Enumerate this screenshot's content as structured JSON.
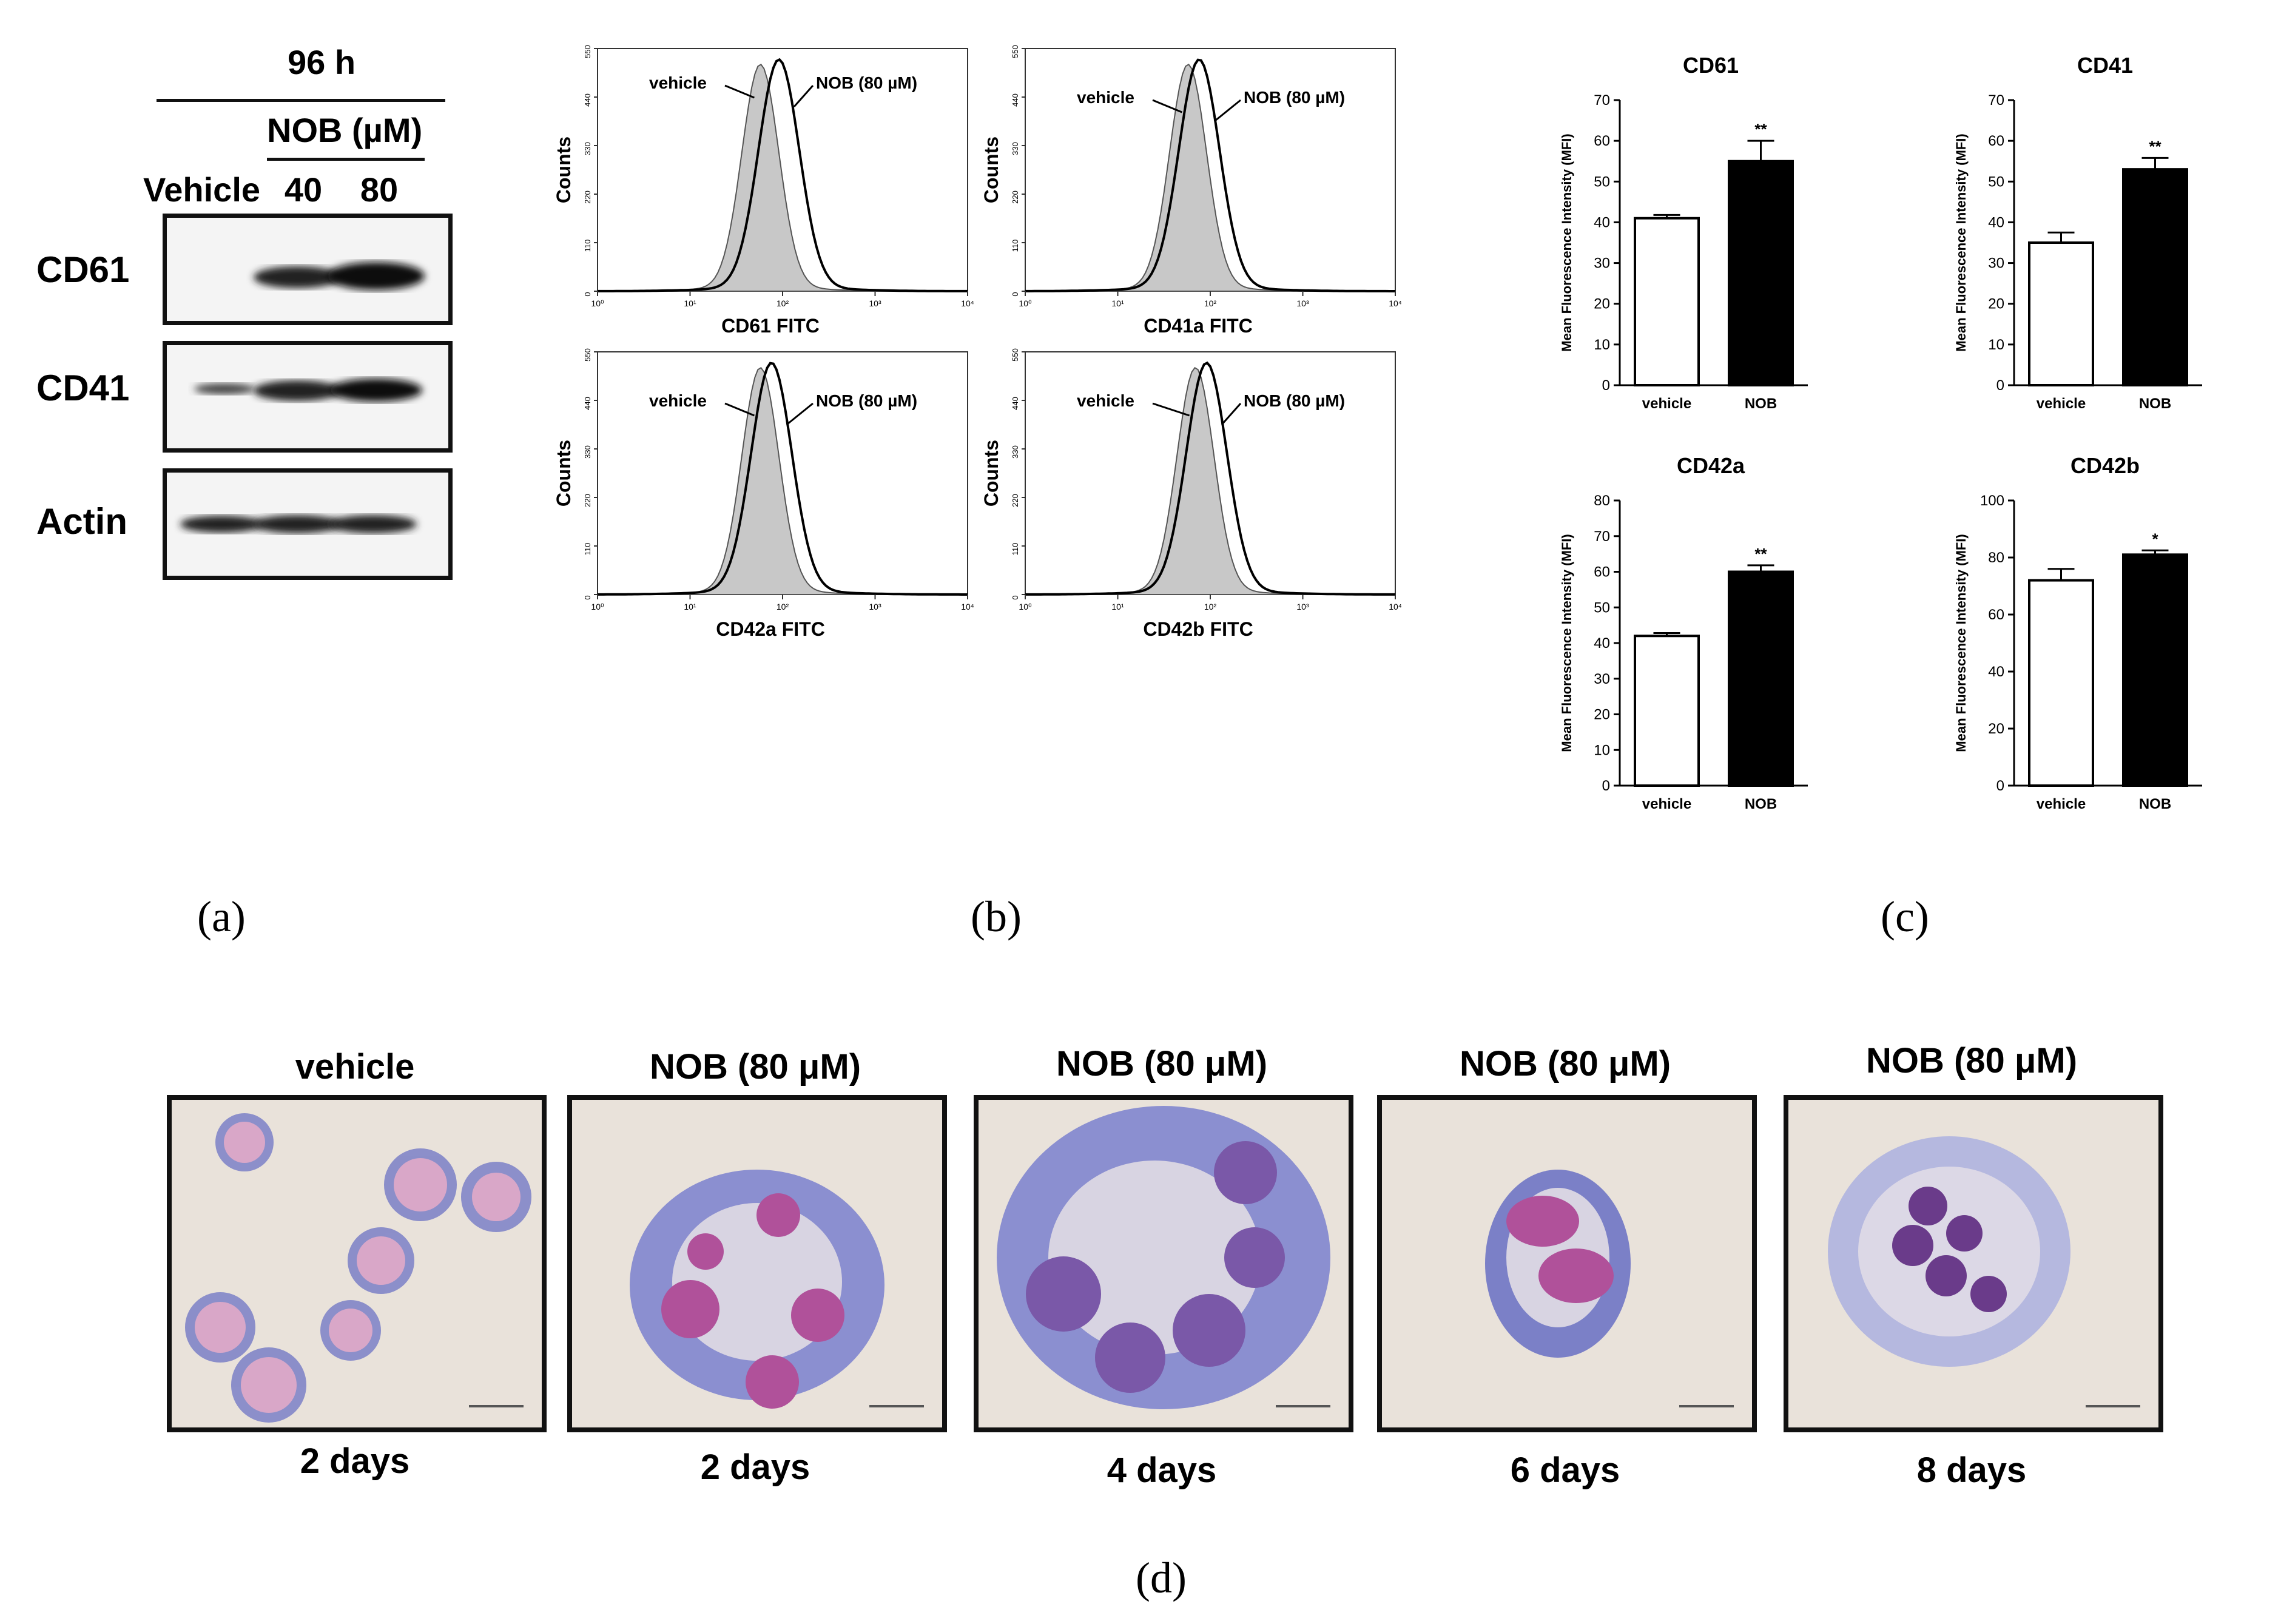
{
  "panels": {
    "a": "(a)",
    "b": "(b)",
    "c": "(c)",
    "d": "(d)"
  },
  "western": {
    "time_label": "96 h",
    "treatment_label": "NOB (µM)",
    "lane_labels": [
      "Vehicle",
      "40",
      "80"
    ],
    "row_labels": [
      "CD61",
      "CD41",
      "Actin"
    ]
  },
  "flow": {
    "y_label": "Counts",
    "y_ticks": [
      "0",
      "110",
      "220",
      "330",
      "440",
      "550"
    ],
    "x_ticks": [
      "10⁰",
      "10¹",
      "10²",
      "10³",
      "10⁴"
    ],
    "vehicle_label": "vehicle",
    "treatment_label": "NOB (80 µM)",
    "plots": [
      {
        "x_label": "CD61 FITC"
      },
      {
        "x_label": "CD41a FITC"
      },
      {
        "x_label": "CD42a FITC"
      },
      {
        "x_label": "CD42b FITC"
      }
    ]
  },
  "chart_data": [
    {
      "type": "bar",
      "title": "CD61",
      "categories": [
        "vehicle",
        "NOB"
      ],
      "values": [
        41,
        55
      ],
      "errors": [
        0.8,
        5
      ],
      "significance": [
        "",
        "**"
      ],
      "ylabel": "Mean Fluorescence Intensity (MFI)",
      "ylim": [
        0,
        70
      ],
      "yticks": [
        0,
        10,
        20,
        30,
        40,
        50,
        60,
        70
      ],
      "colors": [
        "#ffffff",
        "#000000"
      ]
    },
    {
      "type": "bar",
      "title": "CD41",
      "categories": [
        "vehicle",
        "NOB"
      ],
      "values": [
        35,
        53
      ],
      "errors": [
        2.5,
        2.8
      ],
      "significance": [
        "",
        "**"
      ],
      "ylabel": "Mean Fluorescence Intensity (MFI)",
      "ylim": [
        0,
        70
      ],
      "yticks": [
        0,
        10,
        20,
        30,
        40,
        50,
        60,
        70
      ],
      "colors": [
        "#ffffff",
        "#000000"
      ]
    },
    {
      "type": "bar",
      "title": "CD42a",
      "categories": [
        "vehicle",
        "NOB"
      ],
      "values": [
        42,
        60
      ],
      "errors": [
        0.8,
        1.8
      ],
      "significance": [
        "",
        "**"
      ],
      "ylabel": "Mean Fluorescence Intensity (MFI)",
      "ylim": [
        0,
        80
      ],
      "yticks": [
        0,
        10,
        20,
        30,
        40,
        50,
        60,
        70,
        80
      ],
      "colors": [
        "#ffffff",
        "#000000"
      ]
    },
    {
      "type": "bar",
      "title": "CD42b",
      "categories": [
        "vehicle",
        "NOB"
      ],
      "values": [
        72,
        81
      ],
      "errors": [
        4,
        1.5
      ],
      "significance": [
        "",
        "*"
      ],
      "ylabel": "Mean Fluorescence Intensity (MFI)",
      "ylim": [
        0,
        100
      ],
      "yticks": [
        0,
        20,
        40,
        60,
        80,
        100
      ],
      "colors": [
        "#ffffff",
        "#000000"
      ]
    }
  ],
  "micrographs": [
    {
      "title": "vehicle",
      "caption": "2 days"
    },
    {
      "title": "NOB (80 μM)",
      "caption": "2 days"
    },
    {
      "title": "NOB (80 μM)",
      "caption": "4 days"
    },
    {
      "title": "NOB (80 μM)",
      "caption": "6 days"
    },
    {
      "title": "NOB (80 μM)",
      "caption": "8 days"
    }
  ]
}
